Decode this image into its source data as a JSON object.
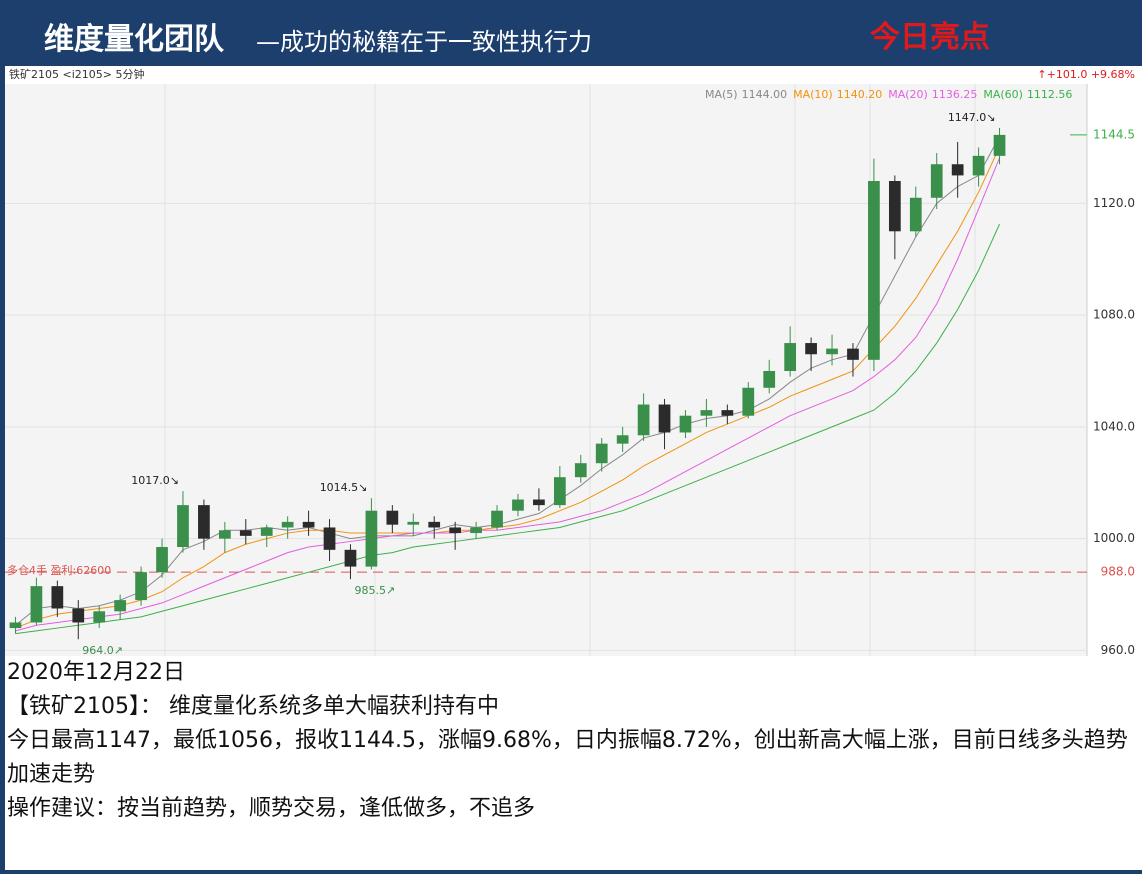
{
  "header": {
    "team": "维度量化团队",
    "slogan": "—成功的秘籍在于一致性执行力",
    "highlight": "今日亮点"
  },
  "chart_data": {
    "type": "candlestick",
    "symbol": "铁矿2105 <i2105> 5分钟",
    "change": "↑+101.0 +9.68%",
    "up_color": "#3a8f4a",
    "down_color": "#2b2b2b",
    "ylim": [
      958,
      1162
    ],
    "yticks": [
      {
        "value": 960,
        "label": "960.0"
      },
      {
        "value": 1000,
        "label": "1000.0"
      },
      {
        "value": 1040,
        "label": "1040.0"
      },
      {
        "value": 1080,
        "label": "1080.0"
      },
      {
        "value": 1120,
        "label": "1120.0"
      }
    ],
    "grid": true,
    "last_price": {
      "value": 1144.5,
      "label": "1144.5"
    },
    "position_line": {
      "text": "多仓4手 盈利:62600",
      "value": 988.0,
      "label": "988.0",
      "color": "#d9534f"
    },
    "ohlc": [
      [
        968,
        972,
        966,
        970
      ],
      [
        970,
        986,
        969,
        983
      ],
      [
        983,
        985,
        972,
        975
      ],
      [
        975,
        978,
        964,
        970
      ],
      [
        970,
        976,
        968,
        974
      ],
      [
        974,
        980,
        971,
        978
      ],
      [
        978,
        990,
        976,
        988
      ],
      [
        988,
        1000,
        986,
        997
      ],
      [
        997,
        1017,
        995,
        1012
      ],
      [
        1012,
        1014,
        996,
        1000
      ],
      [
        1000,
        1006,
        995,
        1003
      ],
      [
        1003,
        1007,
        998,
        1001
      ],
      [
        1001,
        1005,
        997,
        1004
      ],
      [
        1004,
        1008,
        1000,
        1006
      ],
      [
        1006,
        1010,
        1001,
        1004
      ],
      [
        1004,
        1007,
        992,
        996
      ],
      [
        996,
        998,
        985.5,
        990
      ],
      [
        990,
        1014.5,
        989,
        1010
      ],
      [
        1010,
        1012,
        1002,
        1005
      ],
      [
        1005,
        1009,
        1001,
        1006
      ],
      [
        1006,
        1008,
        1000,
        1004
      ],
      [
        1004,
        1006,
        996,
        1002
      ],
      [
        1002,
        1006,
        1000,
        1004
      ],
      [
        1004,
        1012,
        1003,
        1010
      ],
      [
        1010,
        1016,
        1008,
        1014
      ],
      [
        1014,
        1018,
        1010,
        1012
      ],
      [
        1012,
        1026,
        1011,
        1022
      ],
      [
        1022,
        1030,
        1020,
        1027
      ],
      [
        1027,
        1036,
        1024,
        1034
      ],
      [
        1034,
        1040,
        1031,
        1037
      ],
      [
        1037,
        1052,
        1035,
        1048
      ],
      [
        1048,
        1050,
        1032,
        1038
      ],
      [
        1038,
        1046,
        1036,
        1044
      ],
      [
        1044,
        1050,
        1040,
        1046
      ],
      [
        1046,
        1048,
        1041,
        1044
      ],
      [
        1044,
        1056,
        1043,
        1054
      ],
      [
        1054,
        1064,
        1052,
        1060
      ],
      [
        1060,
        1076,
        1058,
        1070
      ],
      [
        1070,
        1072,
        1060,
        1066
      ],
      [
        1066,
        1073,
        1062,
        1068
      ],
      [
        1068,
        1070,
        1058,
        1064
      ],
      [
        1064,
        1136,
        1060,
        1128
      ],
      [
        1128,
        1130,
        1100,
        1110
      ],
      [
        1110,
        1126,
        1108,
        1122
      ],
      [
        1122,
        1138,
        1118,
        1134
      ],
      [
        1134,
        1142,
        1122,
        1130
      ],
      [
        1130,
        1140,
        1126,
        1137
      ],
      [
        1137,
        1147,
        1134,
        1144.5
      ]
    ],
    "series": [
      {
        "name": "MA(5)",
        "color": "#888888",
        "last_label": "1144.00",
        "values": [
          969,
          975,
          976,
          975,
          976,
          978,
          981,
          987,
          996,
          999,
          1003,
          1003,
          1004,
          1003,
          1004,
          1002,
          1000,
          1001,
          1001,
          1001,
          1003,
          1005,
          1004,
          1005,
          1007,
          1009,
          1014,
          1019,
          1025,
          1030,
          1036,
          1038,
          1041,
          1043,
          1044,
          1046,
          1050,
          1056,
          1061,
          1064,
          1066,
          1080,
          1094,
          1108,
          1120,
          1126,
          1130,
          1144.0
        ]
      },
      {
        "name": "MA(10)",
        "color": "#f0930e",
        "last_label": "1140.20",
        "values": [
          968,
          971,
          973,
          974,
          975,
          976,
          978,
          981,
          986,
          990,
          995,
          998,
          1000,
          1002,
          1003,
          1003,
          1002,
          1002,
          1002,
          1002,
          1002,
          1003,
          1003,
          1004,
          1005,
          1007,
          1010,
          1013,
          1017,
          1021,
          1026,
          1030,
          1034,
          1038,
          1041,
          1044,
          1047,
          1051,
          1054,
          1057,
          1060,
          1068,
          1076,
          1086,
          1098,
          1110,
          1124,
          1140.2
        ]
      },
      {
        "name": "MA(20)",
        "color": "#e45ee0",
        "last_label": "1136.25",
        "values": [
          967,
          969,
          970,
          971,
          972,
          973,
          975,
          977,
          980,
          983,
          986,
          989,
          992,
          995,
          997,
          998,
          999,
          1000,
          1001,
          1002,
          1002,
          1002,
          1003,
          1003,
          1004,
          1005,
          1006,
          1008,
          1010,
          1013,
          1016,
          1020,
          1024,
          1028,
          1032,
          1036,
          1040,
          1044,
          1047,
          1050,
          1053,
          1058,
          1064,
          1072,
          1084,
          1100,
          1118,
          1136.25
        ]
      },
      {
        "name": "MA(60)",
        "color": "#3db04a",
        "last_label": "1112.56",
        "values": [
          966,
          967,
          968,
          969,
          970,
          971,
          972,
          974,
          976,
          978,
          980,
          982,
          984,
          986,
          988,
          990,
          992,
          994,
          995,
          997,
          998,
          999,
          1000,
          1001,
          1002,
          1003,
          1004,
          1006,
          1008,
          1010,
          1013,
          1016,
          1019,
          1022,
          1025,
          1028,
          1031,
          1034,
          1037,
          1040,
          1043,
          1046,
          1052,
          1060,
          1070,
          1082,
          1096,
          1112.56
        ]
      }
    ],
    "annotations": [
      {
        "label": "1147.0↘",
        "value": 1147.0,
        "candle": 47
      },
      {
        "label": "1017.0↘",
        "value": 1017.0,
        "candle": 8
      },
      {
        "label": "1014.5↘",
        "value": 1014.5,
        "candle": 17
      },
      {
        "label": "985.5↗",
        "value": 985.5,
        "candle": 16
      },
      {
        "label": "964.0↗",
        "value": 964.0,
        "candle": 3
      }
    ]
  },
  "report": {
    "date": "2020年12月22日",
    "lines": [
      "【铁矿2105】：  维度量化系统多单大幅获利持有中",
      "今日最高1147，最低1056，报收1144.5，涨幅9.68%，日内振幅8.72%，创出新高大幅上涨，目前日线多头趋势加速走势",
      "操作建议：按当前趋势，顺势交易，逢低做多，不追多"
    ]
  }
}
